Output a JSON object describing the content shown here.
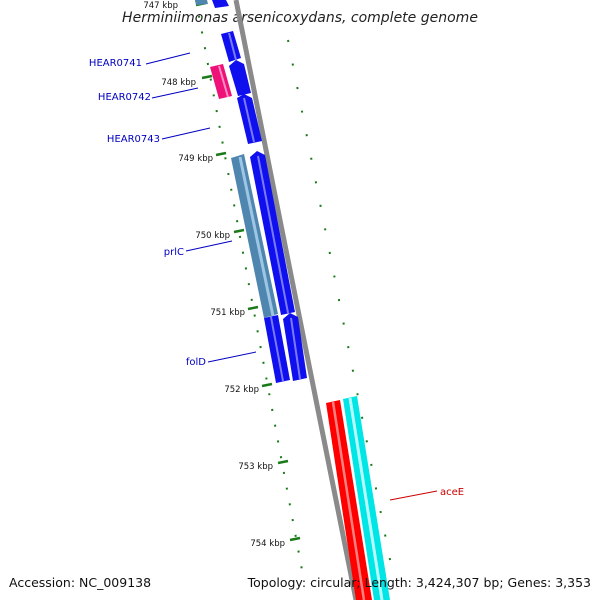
{
  "title": "Herminiimonas arsenicoxydans, complete genome",
  "footer": {
    "accession": "Accession: NC_009138",
    "summary": "Topology: circular; Length: 3,424,307 bp; Genes: 3,353"
  },
  "colors": {
    "cds_forward": "#1010ee",
    "cds_pseudo": "#ee1177",
    "cds_blast": "#4f86b0",
    "rrna": "#ff0000",
    "trna": "#00e5e5",
    "backbone": "#8a8a8a",
    "ticks": "#1a7a1a",
    "gene_label": "#0000c0",
    "rna_label": "#cc0000"
  },
  "ruler": [
    {
      "label": "747 kbp"
    },
    {
      "label": "748 kbp"
    },
    {
      "label": "749 kbp"
    },
    {
      "label": "750 kbp"
    },
    {
      "label": "751 kbp"
    },
    {
      "label": "752 kbp"
    },
    {
      "label": "753 kbp"
    },
    {
      "label": "754 kbp"
    }
  ],
  "gene_labels": [
    {
      "name": "HEAR0741"
    },
    {
      "name": "HEAR0742"
    },
    {
      "name": "HEAR0743"
    },
    {
      "name": "prlC"
    },
    {
      "name": "folD"
    },
    {
      "name": "aceE"
    }
  ]
}
